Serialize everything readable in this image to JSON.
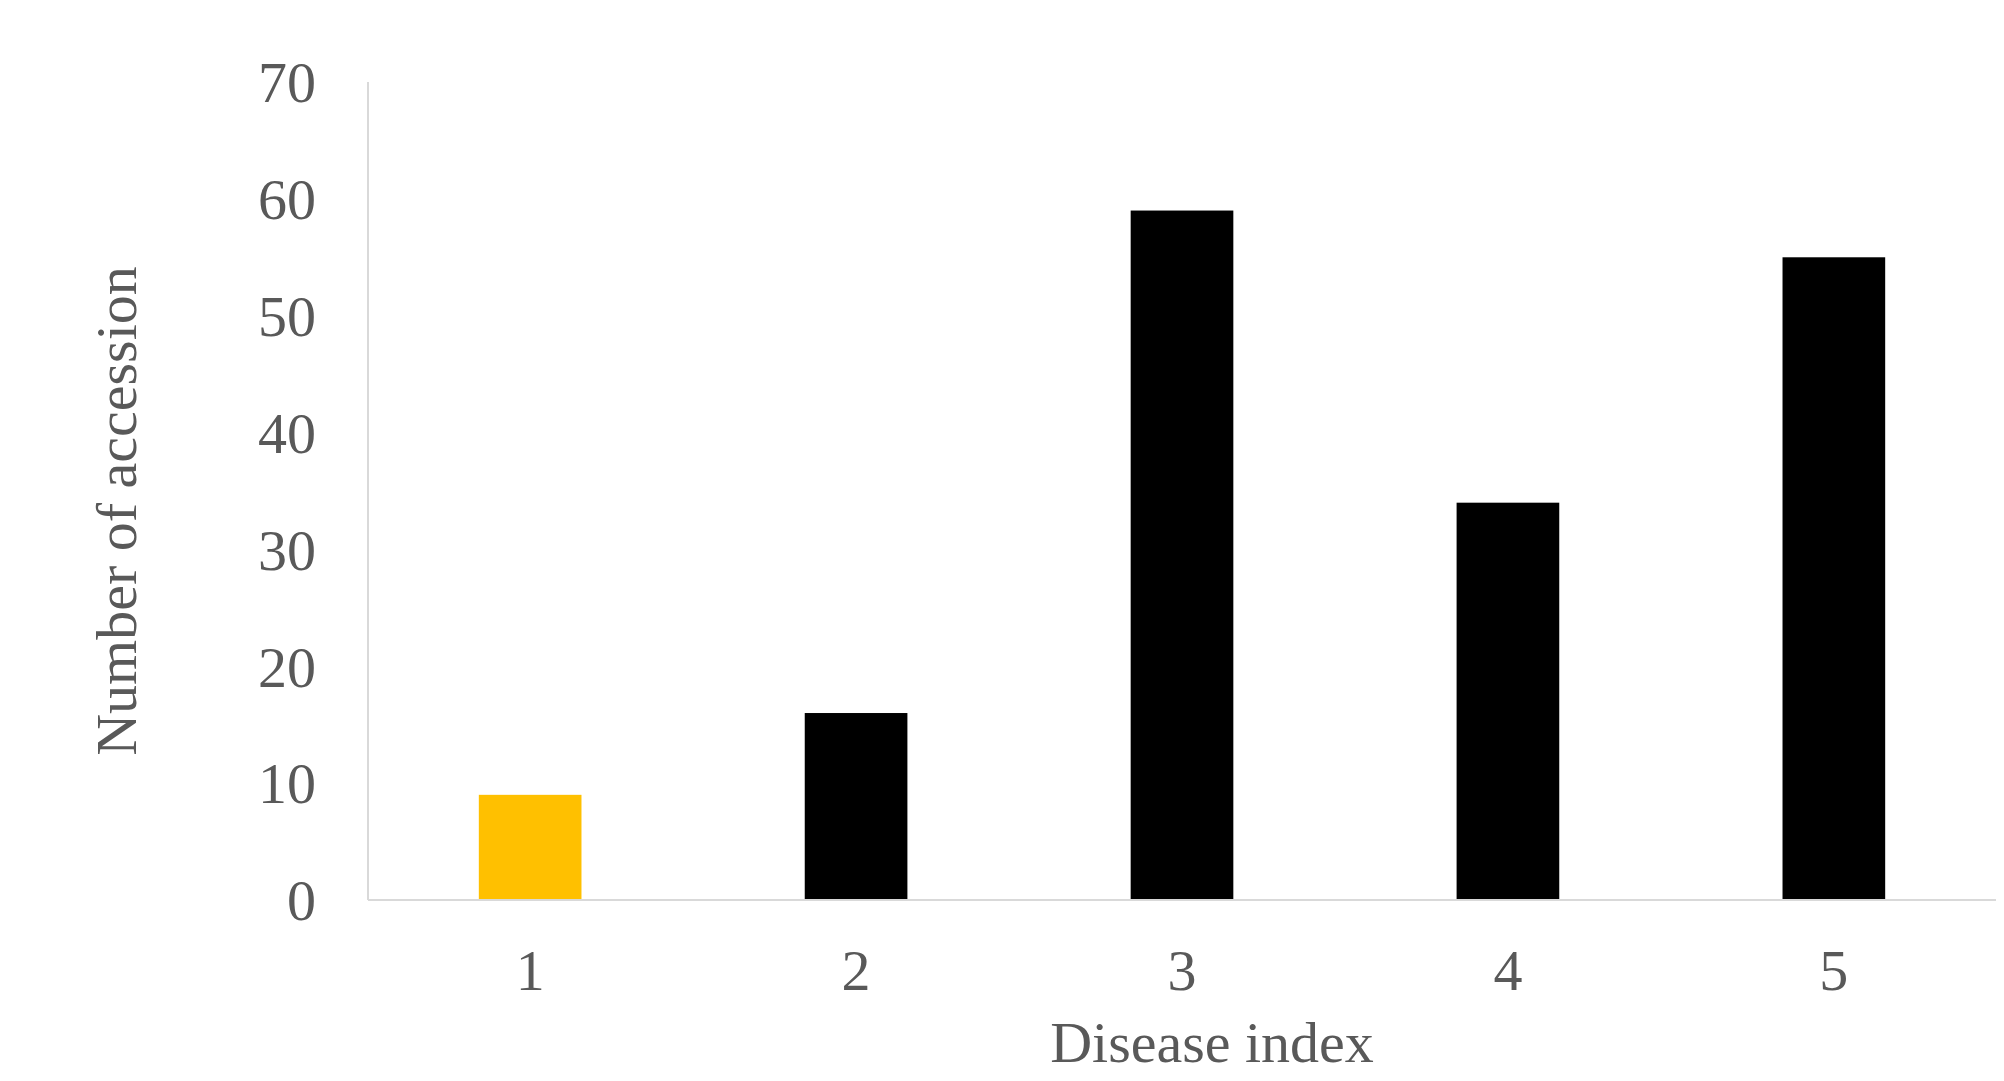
{
  "chart_data": {
    "type": "bar",
    "xlabel": "Disease index",
    "ylabel": "Number of accession",
    "categories": [
      "1",
      "2",
      "3",
      "4",
      "5"
    ],
    "values": [
      9,
      16,
      59,
      34,
      55
    ],
    "colors": [
      "#ffc000",
      "#000000",
      "#000000",
      "#000000",
      "#000000"
    ],
    "ylim": [
      0,
      70
    ],
    "yticks": [
      0,
      10,
      20,
      30,
      40,
      50,
      60,
      70
    ],
    "grid": false
  }
}
